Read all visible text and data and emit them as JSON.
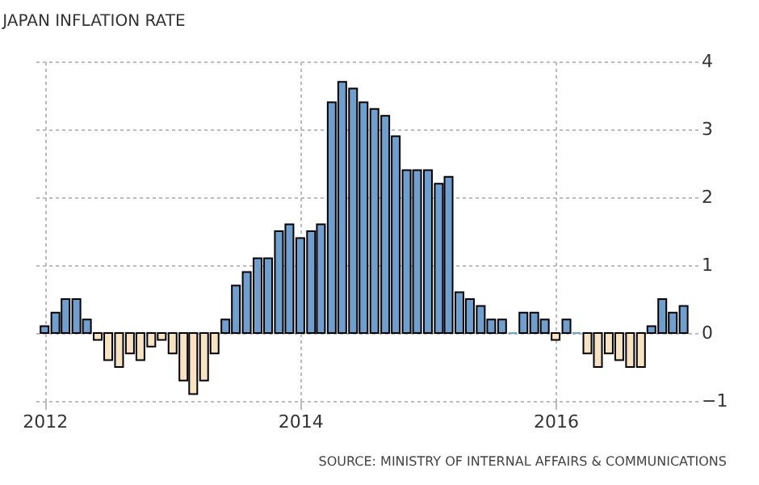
{
  "chart_data": {
    "type": "bar",
    "title": "JAPAN INFLATION RATE",
    "x": [
      "2012-01",
      "2012-02",
      "2012-03",
      "2012-04",
      "2012-05",
      "2012-06",
      "2012-07",
      "2012-08",
      "2012-09",
      "2012-10",
      "2012-11",
      "2012-12",
      "2013-01",
      "2013-02",
      "2013-03",
      "2013-04",
      "2013-05",
      "2013-06",
      "2013-07",
      "2013-08",
      "2013-09",
      "2013-10",
      "2013-11",
      "2013-12",
      "2014-01",
      "2014-02",
      "2014-03",
      "2014-04",
      "2014-05",
      "2014-06",
      "2014-07",
      "2014-08",
      "2014-09",
      "2014-10",
      "2014-11",
      "2014-12",
      "2015-01",
      "2015-02",
      "2015-03",
      "2015-04",
      "2015-05",
      "2015-06",
      "2015-07",
      "2015-08",
      "2015-09",
      "2015-10",
      "2015-11",
      "2015-12",
      "2016-01",
      "2016-02",
      "2016-03",
      "2016-04",
      "2016-05",
      "2016-06",
      "2016-07",
      "2016-08",
      "2016-09",
      "2016-10",
      "2016-11",
      "2016-12",
      "2017-01"
    ],
    "values": [
      0.1,
      0.3,
      0.5,
      0.5,
      0.2,
      -0.1,
      -0.4,
      -0.5,
      -0.3,
      -0.4,
      -0.2,
      -0.1,
      -0.3,
      -0.7,
      -0.9,
      -0.7,
      -0.3,
      0.2,
      0.7,
      0.9,
      1.1,
      1.1,
      1.5,
      1.6,
      1.4,
      1.5,
      1.6,
      3.4,
      3.7,
      3.6,
      3.4,
      3.3,
      3.2,
      2.9,
      2.4,
      2.4,
      2.4,
      2.2,
      2.3,
      0.6,
      0.5,
      0.4,
      0.2,
      0.2,
      0,
      0.3,
      0.3,
      0.2,
      -0.1,
      0.2,
      0,
      -0.3,
      -0.5,
      -0.3,
      -0.4,
      -0.5,
      -0.5,
      0.1,
      0.5,
      0.3,
      0.4
    ],
    "colors": [
      "#6f9fcf",
      "#6f9fcf",
      "#6f9fcf",
      "#6f9fcf",
      "#6f9fcf",
      "#f7e3c2",
      "#f7e3c2",
      "#f7e3c2",
      "#f7e3c2",
      "#f7e3c2",
      "#f7e3c2",
      "#f7e3c2",
      "#f7e3c2",
      "#f7e3c2",
      "#f7e3c2",
      "#f7e3c2",
      "#f7e3c2",
      "#6f9fcf",
      "#6f9fcf",
      "#6f9fcf",
      "#6f9fcf",
      "#6f9fcf",
      "#6f9fcf",
      "#6f9fcf",
      "#6f9fcf",
      "#6f9fcf",
      "#6f9fcf",
      "#6f9fcf",
      "#6f9fcf",
      "#6f9fcf",
      "#6f9fcf",
      "#6f9fcf",
      "#6f9fcf",
      "#6f9fcf",
      "#6f9fcf",
      "#6f9fcf",
      "#6f9fcf",
      "#6f9fcf",
      "#6f9fcf",
      "#6f9fcf",
      "#6f9fcf",
      "#6f9fcf",
      "#6f9fcf",
      "#6f9fcf",
      "#6f9fcf",
      "#6f9fcf",
      "#6f9fcf",
      "#6f9fcf",
      "#f7e3c2",
      "#6f9fcf",
      "#6f9fcf",
      "#f7e3c2",
      "#f7e3c2",
      "#f7e3c2",
      "#f7e3c2",
      "#f7e3c2",
      "#f7e3c2",
      "#6f9fcf",
      "#6f9fcf",
      "#6f9fcf",
      "#6f9fcf"
    ],
    "xlim": [
      "2011-12-20",
      "2017-01-18"
    ],
    "xticks": [
      "2012",
      "2014",
      "2016"
    ],
    "ylim": [
      -1,
      4
    ],
    "yticks": [
      -1,
      0,
      1,
      2,
      3,
      4
    ],
    "grid": true,
    "annotations": [
      "SOURCE: MINISTRY OF INTERNAL AFFAIRS & COMMUNICATIONS"
    ]
  }
}
